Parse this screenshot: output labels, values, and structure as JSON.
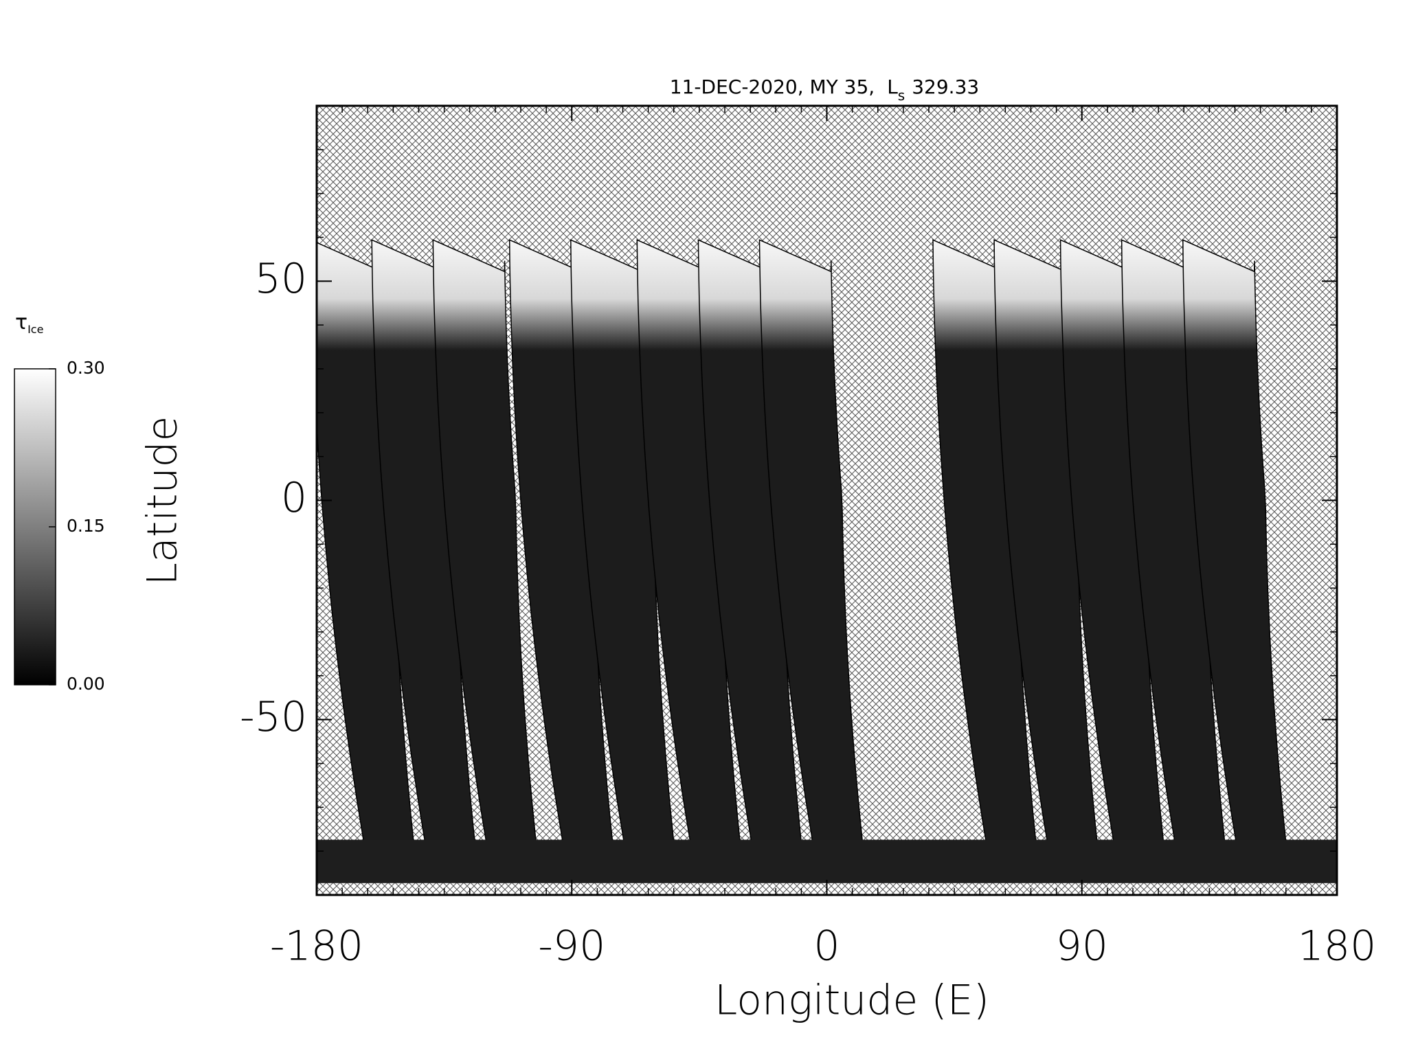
{
  "chart_data": {
    "type": "map",
    "title": "11-DEC-2020, MY 35,",
    "ls_symbol": "L",
    "ls_subscript": "s",
    "ls_value": 329.33,
    "x_label": "Longitude (E)",
    "y_label": "Latitude",
    "xlim": [
      -180,
      180
    ],
    "xticks": [
      -180,
      -90,
      0,
      90,
      180
    ],
    "ylim": [
      -90,
      90
    ],
    "yticks": [
      -50,
      0,
      50
    ],
    "colorbar_symbol": "τ",
    "colorbar_subscript": "Ice",
    "clim": [
      0,
      0.3
    ],
    "cticks": [
      {
        "value": 0,
        "label": "0.00"
      },
      {
        "value": 0.15,
        "label": "0.15"
      },
      {
        "value": 0.3,
        "label": "0.30"
      }
    ]
  }
}
